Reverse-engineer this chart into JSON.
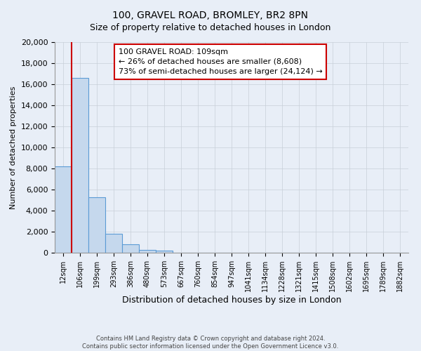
{
  "title": "100, GRAVEL ROAD, BROMLEY, BR2 8PN",
  "subtitle": "Size of property relative to detached houses in London",
  "xlabel": "Distribution of detached houses by size in London",
  "ylabel": "Number of detached properties",
  "categories": [
    "12sqm",
    "106sqm",
    "199sqm",
    "293sqm",
    "386sqm",
    "480sqm",
    "573sqm",
    "667sqm",
    "760sqm",
    "854sqm",
    "947sqm",
    "1041sqm",
    "1134sqm",
    "1228sqm",
    "1321sqm",
    "1415sqm",
    "1508sqm",
    "1602sqm",
    "1695sqm",
    "1789sqm",
    "1882sqm"
  ],
  "values": [
    8200,
    16600,
    5300,
    1800,
    800,
    300,
    200,
    0,
    0,
    0,
    0,
    0,
    0,
    0,
    0,
    0,
    0,
    0,
    0,
    0,
    0
  ],
  "bar_color": "#c5d8ed",
  "bar_edge_color": "#5b9bd5",
  "ylim": [
    0,
    20000
  ],
  "yticks": [
    0,
    2000,
    4000,
    6000,
    8000,
    10000,
    12000,
    14000,
    16000,
    18000,
    20000
  ],
  "property_line_color": "#cc0000",
  "annotation_line1": "100 GRAVEL ROAD: 109sqm",
  "annotation_line2": "← 26% of detached houses are smaller (8,608)",
  "annotation_line3": "73% of semi-detached houses are larger (24,124) →",
  "footer_line1": "Contains HM Land Registry data © Crown copyright and database right 2024.",
  "footer_line2": "Contains public sector information licensed under the Open Government Licence v3.0.",
  "background_color": "#e8eef7",
  "plot_background": "#e8eef7",
  "grid_color": "#c8cfd8"
}
